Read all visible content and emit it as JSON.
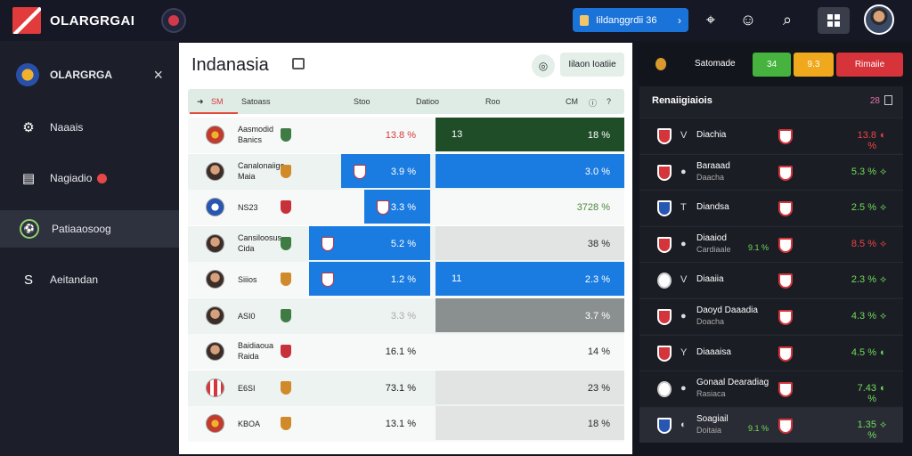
{
  "app": {
    "title": "OLARGRGAI"
  },
  "topbar": {
    "search_label": "Iildanggrdii 36",
    "arrow": "›",
    "location_icon": "location-pin-icon",
    "profile_icon": "character-icon",
    "search_icon": "search-icon",
    "grid_icon": "grid-icon"
  },
  "sidebar": {
    "title": "OLARGRGA",
    "close": "×",
    "items": [
      {
        "label": "Naaais",
        "icon": "⚙",
        "icon_name": "gear-icon",
        "badge": false,
        "active": false
      },
      {
        "label": "Nagiadio",
        "icon": "▤",
        "icon_name": "list-icon",
        "badge": true,
        "active": false
      },
      {
        "label": "Patiaaosoog",
        "icon": "⚽",
        "icon_name": "ball-icon",
        "badge": false,
        "active": true
      },
      {
        "label": "Aeitandan",
        "icon": "S",
        "icon_name": "letter-s-icon",
        "badge": false,
        "active": false
      }
    ]
  },
  "main": {
    "title": "Indanasia",
    "filter_label": "Iilaon Ioatiie",
    "headers": [
      "Satoass",
      "Stoo",
      "Datioo",
      "Roo",
      "CM"
    ],
    "rows": [
      {
        "name": "Aasmodid",
        "sub": "Banics",
        "pct": "13.8 %",
        "right_value": "18 %",
        "right_label": "13"
      },
      {
        "name": "Canalonaiigo",
        "sub": "Maia",
        "pct": "3.9 %",
        "right_value": "3.0 %",
        "right_label": ""
      },
      {
        "name": "NS23",
        "sub": "",
        "pct": "3.3 %",
        "right_value": "3728 %",
        "right_label": ""
      },
      {
        "name": "Cansiloosus",
        "sub": "Cida",
        "pct": "5.2 %",
        "right_value": "38 %",
        "right_label": ""
      },
      {
        "name": "Siiios",
        "sub": "",
        "pct": "1.2 %",
        "right_value": "2.3 %",
        "right_label": "11"
      },
      {
        "name": "ASI0",
        "sub": "",
        "pct": "3.3 %",
        "right_value": "3.7 %",
        "right_label": ""
      },
      {
        "name": "Baidiaoua",
        "sub": "Raida",
        "pct": "16.1 %",
        "right_value": "14 %",
        "right_label": ""
      },
      {
        "name": "E6SI",
        "sub": "",
        "pct": "73.1 %",
        "right_value": "23 %",
        "right_label": ""
      },
      {
        "name": "KBOA",
        "sub": "",
        "pct": "13.1 %",
        "right_value": "18 %",
        "right_label": ""
      }
    ]
  },
  "rpanel": {
    "top_label": "Satomade",
    "buttons": [
      {
        "label": "34",
        "color": "#45b33e"
      },
      {
        "label": "9.3",
        "color": "#f0a91c"
      },
      {
        "label": "Rimaiie",
        "color": "#d6333a"
      }
    ],
    "head": "Renaiigiaiois",
    "head_right": "28",
    "rows": [
      {
        "mark": "V",
        "name": "Diachia",
        "sub": "",
        "mid": "",
        "val": "13.8 %",
        "trend": "◐",
        "color": "red"
      },
      {
        "mark": "●",
        "name": "Baraaad",
        "sub": "Daacha",
        "mid": "",
        "val": "5.3 %",
        "trend": "⟡",
        "color": "green"
      },
      {
        "mark": "T",
        "name": "Diandsa",
        "sub": "",
        "mid": "",
        "val": "2.5 %",
        "trend": "⟡",
        "color": "green"
      },
      {
        "mark": "●",
        "name": "Diaaiod",
        "sub": "Cardiaale",
        "mid": "9.1 %",
        "val": "8.5 %",
        "trend": "⟡",
        "color": "red"
      },
      {
        "mark": "V",
        "name": "Diaaiia",
        "sub": "",
        "mid": "",
        "val": "2.3 %",
        "trend": "⟡",
        "color": "green"
      },
      {
        "mark": "●",
        "name": "Daoyd Daaadia",
        "sub": "Doacha",
        "mid": "",
        "val": "4.3 %",
        "trend": "⟡",
        "color": "green"
      },
      {
        "mark": "Y",
        "name": "Diaaaisa",
        "sub": "",
        "mid": "",
        "val": "4.5 %",
        "trend": "◐",
        "color": "green"
      },
      {
        "mark": "●",
        "name": "Gonaal Dearadiag",
        "sub": "Rasiaca",
        "mid": "",
        "val": "7.43 %",
        "trend": "◐",
        "color": "green"
      },
      {
        "mark": "◐",
        "name": "Soagiail",
        "sub": "Doitaia",
        "mid": "9.1 %",
        "val": "1.35 %",
        "trend": "⟡",
        "color": "green"
      }
    ]
  }
}
